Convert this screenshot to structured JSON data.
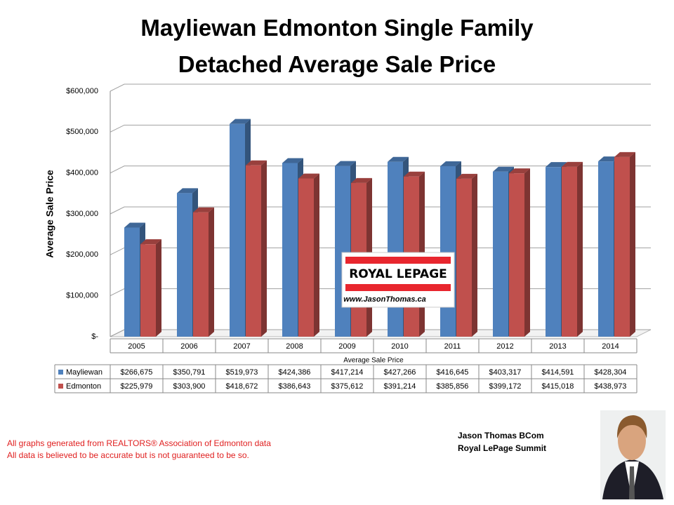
{
  "chart_data": {
    "type": "bar",
    "title": "Mayliewan Edmonton Single Family Detached Average Sale Price",
    "y_label": "Average Sale Price",
    "x_label": "Average Sale Price",
    "categories": [
      "2005",
      "2006",
      "2007",
      "2008",
      "2009",
      "2010",
      "2011",
      "2012",
      "2013",
      "2014"
    ],
    "series": [
      {
        "name": "Mayliewan",
        "color": "#4f81bd",
        "values": [
          266675,
          350791,
          519973,
          424386,
          417214,
          427266,
          416645,
          403317,
          414591,
          428304
        ],
        "value_labels": [
          "$266,675",
          "$350,791",
          "$519,973",
          "$424,386",
          "$417,214",
          "$427,266",
          "$416,645",
          "$403,317",
          "$414,591",
          "$428,304"
        ]
      },
      {
        "name": "Edmonton",
        "color": "#c0504d",
        "values": [
          225979,
          303900,
          418672,
          386643,
          375612,
          391214,
          385856,
          399172,
          415018,
          438973
        ],
        "value_labels": [
          "$225,979",
          "$303,900",
          "$418,672",
          "$386,643",
          "$375,612",
          "$391,214",
          "$385,856",
          "$399,172",
          "$415,018",
          "$438,973"
        ]
      }
    ],
    "ylim": [
      0,
      600000
    ],
    "yticks": [
      {
        "value": 0,
        "label": "$-"
      },
      {
        "value": 100000,
        "label": "$100,000"
      },
      {
        "value": 200000,
        "label": "$200,000"
      },
      {
        "value": 300000,
        "label": "$300,000"
      },
      {
        "value": 400000,
        "label": "$400,000"
      },
      {
        "value": 500000,
        "label": "$500,000"
      },
      {
        "value": 600000,
        "label": "$600,000"
      }
    ],
    "grid": true
  },
  "logo": {
    "brand": "ROYAL LEPAGE",
    "url": "www.JasonThomas.ca"
  },
  "author": {
    "name": "Jason Thomas BCom",
    "company": "Royal LePage Summit"
  },
  "notes": [
    "All graphs generated from REALTORS® Association of Edmonton data",
    "All data is believed to be accurate but is not guaranteed to be so."
  ]
}
